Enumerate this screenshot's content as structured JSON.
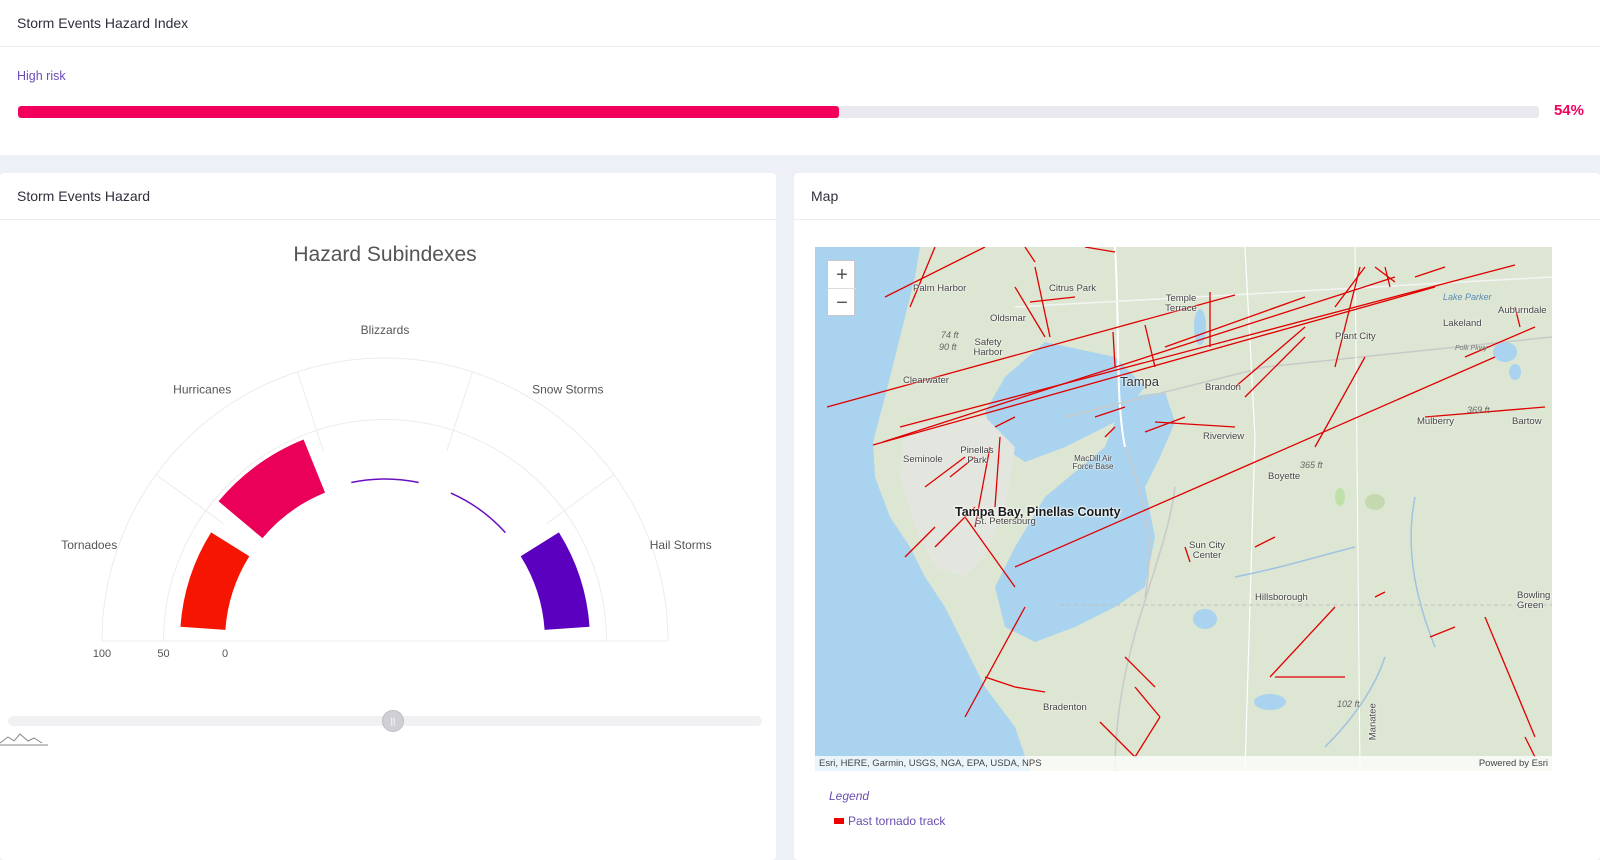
{
  "top": {
    "title": "Storm Events Hazard Index",
    "risk_label": "High risk",
    "risk_percent": 54,
    "risk_value_text": "54%",
    "risk_color": "#f2005b"
  },
  "left": {
    "title": "Storm Events Hazard",
    "chart_title": "Hazard Subindexes",
    "scale_labels": [
      "100",
      "50",
      "0"
    ]
  },
  "chart_data": {
    "type": "radial-bar",
    "title": "Hazard Subindexes",
    "categories": [
      "Tornadoes",
      "Hurricanes",
      "Blizzards",
      "Snow Storms",
      "Hail Storms"
    ],
    "values": [
      35,
      45,
      0,
      0,
      35
    ],
    "colors": [
      "#f51500",
      "#ea0059",
      "#6a0fc0",
      "#6a0fc0",
      "#5c00c0"
    ],
    "ylim": [
      0,
      100
    ],
    "scale_ticks": [
      100,
      50,
      0
    ]
  },
  "right": {
    "title": "Map",
    "zoom_in": "+",
    "zoom_out": "−",
    "popup": "Tampa Bay, Pinellas County",
    "attribution_left": "Esri, HERE, Garmin, USGS, NGA, EPA, USDA, NPS",
    "attribution_right": "Powered by Esri",
    "places": [
      "Palm Harbor",
      "Citrus Park",
      "Temple Terrace",
      "Oldsmar",
      "Safety Harbor",
      "Clearwater",
      "Tampa",
      "Brandon",
      "Plant City",
      "Lakeland",
      "Auburndale",
      "Seminole",
      "Pinellas Park",
      "Riverview",
      "MacDill Air Force Base",
      "St. Petersburg",
      "Sun City Center",
      "Boyette",
      "Hillsborough",
      "Mulberry",
      "Bartow",
      "Bradenton",
      "Manatee",
      "Bowling Green",
      "Lake Parker",
      "Polk Pkwy",
      "365 ft",
      "369 ft",
      "102 ft",
      "74 ft",
      "90 ft"
    ],
    "legend_title": "Legend",
    "legend_item": "Past tornado track",
    "track_color": "#e00000"
  }
}
